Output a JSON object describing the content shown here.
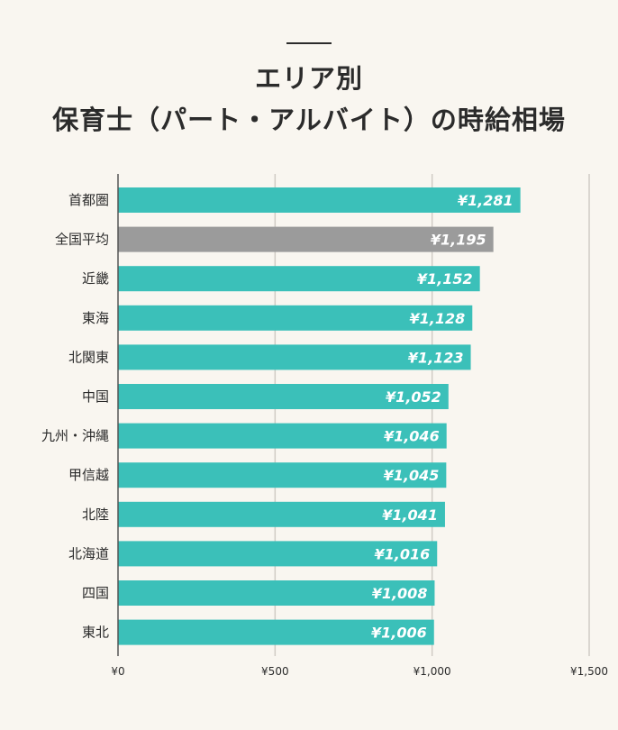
{
  "title_line1": "エリア別",
  "title_line2": "保育士（パート・アルバイト）の時給相場",
  "colors": {
    "bar": "#3bc0b9",
    "highlight_bar": "#9b9b9b",
    "grid": "#d0ccc5",
    "axis": "#555555",
    "background": "#f9f6f0"
  },
  "chart_data": {
    "type": "bar",
    "orientation": "horizontal",
    "title": "エリア別 保育士（パート・アルバイト）の時給相場",
    "categories": [
      "首都圏",
      "全国平均",
      "近畿",
      "東海",
      "北関東",
      "中国",
      "九州・沖縄",
      "甲信越",
      "北陸",
      "北海道",
      "四国",
      "東北"
    ],
    "values": [
      1281,
      1195,
      1152,
      1128,
      1123,
      1052,
      1046,
      1045,
      1041,
      1016,
      1008,
      1006
    ],
    "value_labels": [
      "¥1,281",
      "¥1,195",
      "¥1,152",
      "¥1,128",
      "¥1,123",
      "¥1,052",
      "¥1,046",
      "¥1,045",
      "¥1,041",
      "¥1,016",
      "¥1,008",
      "¥1,006"
    ],
    "highlight_category": "全国平均",
    "xlim": [
      0,
      1500
    ],
    "xticks": [
      0,
      500,
      1000,
      1500
    ],
    "xtick_labels": [
      "¥0",
      "¥500",
      "¥1,000",
      "¥1,500"
    ],
    "grid": true,
    "xlabel": "",
    "ylabel": ""
  }
}
